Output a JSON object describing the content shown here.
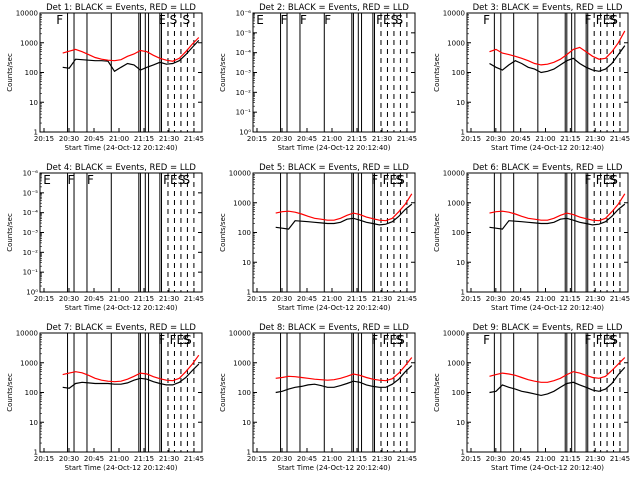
{
  "chart_data": [
    {
      "type": "line",
      "title": "Det 1: BLACK = Events, RED = LLD",
      "xlabel": "Start Time (24-Oct-12 20:12:40)",
      "ylabel": "Counts/sec",
      "yscale": "log",
      "ylim": [
        1,
        10000
      ],
      "yticks": [
        "1",
        "10",
        "100",
        "1000",
        "10000"
      ],
      "xticks": [
        "20:15",
        "20:30",
        "20:45",
        "21:00",
        "21:15",
        "21:30",
        "21:45"
      ],
      "markers": [
        "F",
        "E",
        "S",
        "S"
      ],
      "series": [
        {
          "color": "#000000",
          "values": [
            150,
            140,
            280,
            270,
            260,
            250,
            250,
            240,
            110,
            150,
            200,
            180,
            120,
            150,
            180,
            220,
            190,
            200,
            250,
            400,
            700,
            1200
          ]
        },
        {
          "color": "#ff0000",
          "values": [
            450,
            520,
            600,
            500,
            400,
            320,
            280,
            260,
            250,
            270,
            350,
            420,
            550,
            500,
            380,
            300,
            260,
            240,
            300,
            500,
            900,
            1500
          ]
        }
      ]
    },
    {
      "type": "line",
      "title": "Det 2: BLACK = Events, RED = LLD",
      "xlabel": "Start Time (24-Oct-12 20:12:40)",
      "ylabel": "Counts/sec",
      "yscale": "log",
      "ylim": [
        1,
        1e-06
      ],
      "yticks": [
        "10⁰",
        "10⁻¹",
        "10⁻²",
        "10⁻³",
        "10⁻⁴",
        "10⁻⁵",
        "10⁻⁶"
      ],
      "xticks": [
        "20:15",
        "20:30",
        "20:45",
        "21:00",
        "21:15",
        "21:30",
        "21:45"
      ],
      "markers": [
        "E",
        "F",
        "F",
        "F",
        "FES",
        "S"
      ],
      "series": []
    },
    {
      "type": "line",
      "title": "Det 3: BLACK = Events, RED = LLD",
      "xlabel": "Start Time (24-Oct-12 20:12:40)",
      "ylabel": "Counts/sec",
      "yscale": "log",
      "ylim": [
        1,
        10000
      ],
      "yticks": [
        "1",
        "10",
        "100",
        "1000",
        "10000"
      ],
      "xticks": [
        "20:15",
        "20:30",
        "20:45",
        "21:00",
        "21:15",
        "21:30",
        "21:45"
      ],
      "markers": [
        "F",
        "F",
        "FES",
        "S"
      ],
      "series": [
        {
          "color": "#000000",
          "values": [
            200,
            150,
            120,
            180,
            250,
            200,
            150,
            130,
            100,
            110,
            130,
            180,
            250,
            300,
            200,
            150,
            120,
            110,
            130,
            200,
            400,
            800
          ]
        },
        {
          "color": "#ff0000",
          "values": [
            500,
            600,
            450,
            400,
            350,
            300,
            250,
            200,
            180,
            190,
            220,
            280,
            400,
            600,
            700,
            500,
            350,
            280,
            300,
            500,
            1000,
            2500
          ]
        }
      ]
    },
    {
      "type": "line",
      "title": "Det 4: BLACK = Events, RED = LLD",
      "xlabel": "Start Time (24-Oct-12 20:12:40)",
      "ylabel": "Counts/sec",
      "yscale": "log",
      "ylim": [
        1,
        1e-06
      ],
      "yticks": [
        "10⁰",
        "10⁻¹",
        "10⁻²",
        "10⁻³",
        "10⁻⁴",
        "10⁻⁵",
        "10⁻⁶"
      ],
      "xticks": [
        "20:15",
        "20:30",
        "20:45",
        "21:00",
        "21:15",
        "21:30",
        "21:45"
      ],
      "markers": [
        "E",
        "F",
        "F",
        "FES",
        "S"
      ],
      "series": []
    },
    {
      "type": "line",
      "title": "Det 5: BLACK = Events, RED = LLD",
      "xlabel": "Start Time (24-Oct-12 20:12:40)",
      "ylabel": "Counts/sec",
      "yscale": "log",
      "ylim": [
        1,
        10000
      ],
      "yticks": [
        "1",
        "10",
        "100",
        "1000",
        "10000"
      ],
      "xticks": [
        "20:15",
        "20:30",
        "20:45",
        "21:00",
        "21:15",
        "21:30",
        "21:45"
      ],
      "markers": [
        "F",
        "FES",
        "S"
      ],
      "series": [
        {
          "color": "#000000",
          "values": [
            150,
            140,
            130,
            250,
            240,
            230,
            220,
            210,
            200,
            200,
            220,
            280,
            300,
            260,
            220,
            200,
            180,
            190,
            230,
            350,
            600,
            900
          ]
        },
        {
          "color": "#ff0000",
          "values": [
            450,
            500,
            520,
            480,
            420,
            350,
            300,
            280,
            260,
            260,
            300,
            380,
            450,
            400,
            330,
            290,
            260,
            250,
            300,
            500,
            900,
            2000
          ]
        }
      ]
    },
    {
      "type": "line",
      "title": "Det 6: BLACK = Events, RED = LLD",
      "xlabel": "Start Time (24-Oct-12 20:12:40)",
      "ylabel": "Counts/sec",
      "yscale": "log",
      "ylim": [
        1,
        10000
      ],
      "yticks": [
        "1",
        "10",
        "100",
        "1000",
        "10000"
      ],
      "xticks": [
        "20:15",
        "20:30",
        "20:45",
        "21:00",
        "21:15",
        "21:30",
        "21:45"
      ],
      "markers": [
        "F",
        "FES",
        "S"
      ],
      "series": [
        {
          "color": "#000000",
          "values": [
            150,
            140,
            130,
            250,
            240,
            230,
            220,
            210,
            200,
            200,
            220,
            280,
            300,
            260,
            220,
            200,
            180,
            190,
            230,
            350,
            600,
            900
          ]
        },
        {
          "color": "#ff0000",
          "values": [
            450,
            500,
            520,
            480,
            420,
            350,
            300,
            280,
            260,
            260,
            300,
            380,
            450,
            400,
            330,
            290,
            260,
            250,
            300,
            500,
            900,
            2000
          ]
        }
      ]
    },
    {
      "type": "line",
      "title": "Det 7: BLACK = Events, RED = LLD",
      "xlabel": "Start Time (24-Oct-12 20:12:40)",
      "ylabel": "Counts/sec",
      "yscale": "log",
      "ylim": [
        1,
        10000
      ],
      "yticks": [
        "1",
        "10",
        "100",
        "1000",
        "10000"
      ],
      "xticks": [
        "20:15",
        "20:30",
        "20:45",
        "21:00",
        "21:15",
        "21:30",
        "21:45"
      ],
      "markers": [
        "F",
        "FES",
        "S"
      ],
      "series": [
        {
          "color": "#000000",
          "values": [
            150,
            140,
            200,
            220,
            210,
            200,
            200,
            200,
            190,
            190,
            210,
            260,
            300,
            280,
            230,
            200,
            180,
            180,
            220,
            320,
            550,
            900
          ]
        },
        {
          "color": "#ff0000",
          "values": [
            400,
            450,
            500,
            460,
            380,
            300,
            260,
            240,
            230,
            240,
            280,
            350,
            450,
            420,
            340,
            290,
            260,
            250,
            300,
            500,
            900,
            1800
          ]
        }
      ]
    },
    {
      "type": "line",
      "title": "Det 8: BLACK = Events, RED = LLD",
      "xlabel": "Start Time (24-Oct-12 20:12:40)",
      "ylabel": "Counts/sec",
      "yscale": "log",
      "ylim": [
        1,
        10000
      ],
      "yticks": [
        "1",
        "10",
        "100",
        "1000",
        "10000"
      ],
      "xticks": [
        "20:15",
        "20:30",
        "20:45",
        "21:00",
        "21:15",
        "21:30",
        "21:45"
      ],
      "markers": [
        "F",
        "FES",
        "S"
      ],
      "series": [
        {
          "color": "#000000",
          "values": [
            100,
            110,
            130,
            150,
            160,
            180,
            190,
            170,
            150,
            150,
            170,
            200,
            240,
            220,
            180,
            160,
            150,
            150,
            190,
            280,
            500,
            800
          ]
        },
        {
          "color": "#ff0000",
          "values": [
            300,
            320,
            350,
            340,
            320,
            300,
            280,
            270,
            260,
            270,
            300,
            350,
            420,
            380,
            320,
            280,
            260,
            250,
            290,
            450,
            800,
            1500
          ]
        }
      ]
    },
    {
      "type": "line",
      "title": "Det 9: BLACK = Events, RED = LLD",
      "xlabel": "Start Time (24-Oct-12 20:12:40)",
      "ylabel": "Counts/sec",
      "yscale": "log",
      "ylim": [
        1,
        10000
      ],
      "yticks": [
        "1",
        "10",
        "100",
        "1000",
        "10000"
      ],
      "xticks": [
        "20:15",
        "20:30",
        "20:45",
        "21:00",
        "21:15",
        "21:30",
        "21:45"
      ],
      "markers": [
        "F",
        "F",
        "FES",
        "S"
      ],
      "series": [
        {
          "color": "#000000",
          "values": [
            100,
            110,
            180,
            150,
            130,
            110,
            100,
            90,
            80,
            90,
            110,
            150,
            200,
            220,
            180,
            150,
            120,
            110,
            130,
            200,
            400,
            700
          ]
        },
        {
          "color": "#ff0000",
          "values": [
            350,
            400,
            450,
            420,
            380,
            320,
            270,
            240,
            220,
            220,
            250,
            300,
            400,
            500,
            450,
            380,
            320,
            300,
            350,
            550,
            900,
            1500
          ]
        }
      ]
    }
  ]
}
